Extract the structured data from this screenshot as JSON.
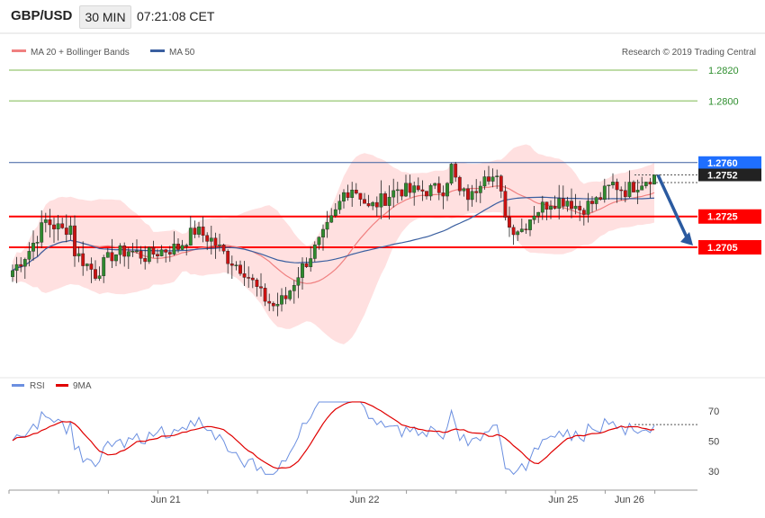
{
  "header": {
    "symbol": "GBP/USD",
    "timeframe": "30 MIN",
    "time": "07:21:08 CET"
  },
  "legend": {
    "ma20_label": "MA 20 + Bollinger Bands",
    "ma50_label": "MA 50",
    "copyright": "Research © 2019 Trading Central",
    "ma20_color": "#f08080",
    "ma50_color": "#3a5fa0"
  },
  "rsi_legend": {
    "rsi_label": "RSI",
    "ma_label": "9MA",
    "rsi_color": "#6b8fe0",
    "ma_color": "#e00000"
  },
  "chart_data": [
    {
      "type": "candlestick",
      "ylim": [
        2.3,
        7.3
      ],
      "price_levels": [
        {
          "label": "1.2820",
          "value": 1.282,
          "kind": "target"
        },
        {
          "label": "1.2800",
          "value": 1.28,
          "kind": "target"
        },
        {
          "label": "1.2760",
          "value": 1.276,
          "kind": "pivot"
        },
        {
          "label": "1.2752",
          "value": 1.2752,
          "kind": "last"
        },
        {
          "label": "1.2725",
          "value": 1.2725,
          "kind": "support"
        },
        {
          "label": "1.2705",
          "value": 1.2705,
          "kind": "support"
        }
      ],
      "price_range": [
        1.2625,
        1.2835
      ],
      "x_labels": [
        {
          "label": "Jun 21",
          "index": 37
        },
        {
          "label": "Jun 22",
          "index": 85
        },
        {
          "label": "Jun 25",
          "index": 133
        },
        {
          "label": "Jun 26",
          "index": 149
        }
      ],
      "candle_count": 156,
      "last_close": 1.2752,
      "forecast": {
        "from": 1.2752,
        "to": 1.2705
      }
    },
    {
      "type": "line",
      "name": "RSI",
      "ylim": [
        20,
        80
      ],
      "ticks": [
        30,
        50,
        70
      ]
    }
  ],
  "colors": {
    "up": "#2e8b2e",
    "down": "#cc1111",
    "band_fill": "#ffd6d6",
    "target_line": "#a8d08a",
    "pivot_line": "#3a5fa0",
    "support_line": "#ff0000",
    "pivot_tag": "#1f6fff",
    "last_tag": "#222222",
    "support_tag": "#ff0000",
    "arrow": "#2a5aa0"
  }
}
